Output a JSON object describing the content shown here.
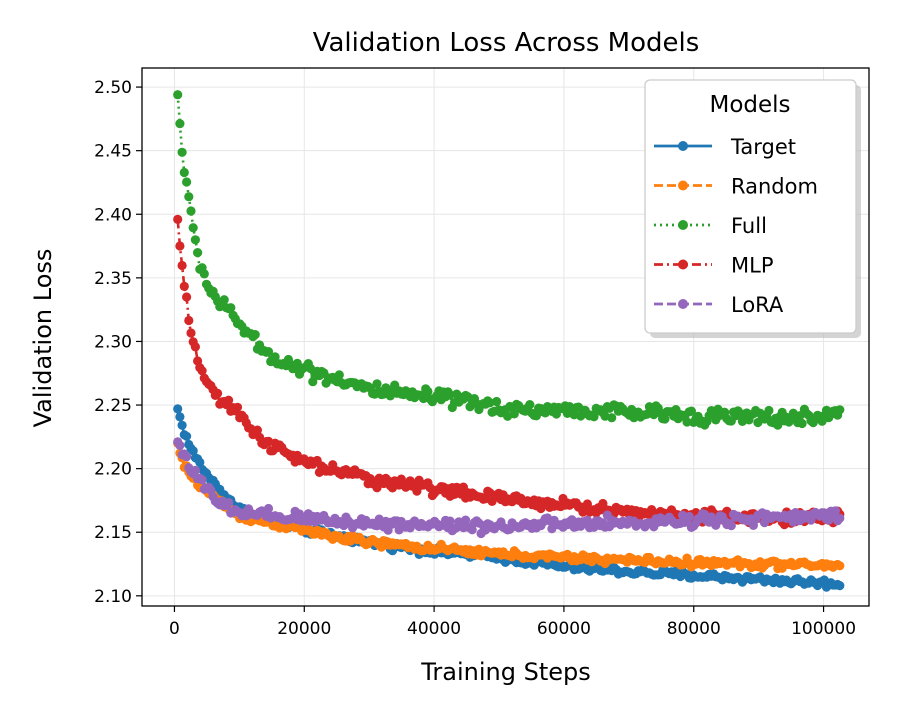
{
  "chart_data": {
    "type": "line",
    "title": "Validation Loss Across Models",
    "xlabel": "Training Steps",
    "ylabel": "Validation Loss",
    "xlim": [
      -5000,
      107000
    ],
    "ylim": [
      2.092,
      2.515
    ],
    "xticks": [
      0,
      20000,
      40000,
      60000,
      80000,
      100000
    ],
    "xtick_labels": [
      "0",
      "20000",
      "40000",
      "60000",
      "80000",
      "100000"
    ],
    "yticks": [
      2.1,
      2.15,
      2.2,
      2.25,
      2.3,
      2.35,
      2.4,
      2.45,
      2.5
    ],
    "ytick_labels": [
      "2.10",
      "2.15",
      "2.20",
      "2.25",
      "2.30",
      "2.35",
      "2.40",
      "2.45",
      "2.50"
    ],
    "grid": true,
    "legend": {
      "title": "Models",
      "position": "top-right"
    },
    "x_range": [
      500,
      102500
    ],
    "points_per_series": 300,
    "series": [
      {
        "name": "Target",
        "color": "#1f77b4",
        "dash": "solid",
        "anchors": [
          [
            500,
            2.247
          ],
          [
            1000,
            2.237
          ],
          [
            2000,
            2.222
          ],
          [
            3000,
            2.211
          ],
          [
            5000,
            2.195
          ],
          [
            7000,
            2.183
          ],
          [
            10000,
            2.168
          ],
          [
            15000,
            2.158
          ],
          [
            20000,
            2.152
          ],
          [
            25000,
            2.147
          ],
          [
            30000,
            2.142
          ],
          [
            40000,
            2.135
          ],
          [
            50000,
            2.13
          ],
          [
            60000,
            2.123
          ],
          [
            70000,
            2.119
          ],
          [
            80000,
            2.116
          ],
          [
            90000,
            2.113
          ],
          [
            100000,
            2.11
          ],
          [
            102500,
            2.109
          ]
        ],
        "noise": 0.003
      },
      {
        "name": "Random",
        "color": "#ff7f0e",
        "dash": "dashed",
        "anchors": [
          [
            500,
            2.22
          ],
          [
            1000,
            2.208
          ],
          [
            2000,
            2.198
          ],
          [
            3000,
            2.192
          ],
          [
            5000,
            2.182
          ],
          [
            7000,
            2.174
          ],
          [
            10000,
            2.163
          ],
          [
            15000,
            2.157
          ],
          [
            20000,
            2.152
          ],
          [
            25000,
            2.146
          ],
          [
            30000,
            2.142
          ],
          [
            40000,
            2.137
          ],
          [
            50000,
            2.133
          ],
          [
            60000,
            2.13
          ],
          [
            70000,
            2.128
          ],
          [
            80000,
            2.126
          ],
          [
            90000,
            2.125
          ],
          [
            100000,
            2.124
          ],
          [
            102500,
            2.124
          ]
        ],
        "noise": 0.003
      },
      {
        "name": "Full",
        "color": "#2ca02c",
        "dash": "dotted",
        "anchors": [
          [
            500,
            2.494
          ],
          [
            1000,
            2.46
          ],
          [
            1500,
            2.436
          ],
          [
            2500,
            2.4
          ],
          [
            3500,
            2.37
          ],
          [
            5000,
            2.345
          ],
          [
            7000,
            2.33
          ],
          [
            10000,
            2.315
          ],
          [
            13000,
            2.295
          ],
          [
            17000,
            2.283
          ],
          [
            22000,
            2.275
          ],
          [
            27000,
            2.268
          ],
          [
            30000,
            2.262
          ],
          [
            35000,
            2.258
          ],
          [
            40000,
            2.256
          ],
          [
            45000,
            2.252
          ],
          [
            50000,
            2.248
          ],
          [
            55000,
            2.246
          ],
          [
            60000,
            2.246
          ],
          [
            65000,
            2.245
          ],
          [
            70000,
            2.244
          ],
          [
            80000,
            2.242
          ],
          [
            90000,
            2.24
          ],
          [
            100000,
            2.24
          ],
          [
            102500,
            2.246
          ]
        ],
        "noise": 0.006
      },
      {
        "name": "MLP",
        "color": "#d62728",
        "dash": "dashdot",
        "anchors": [
          [
            500,
            2.396
          ],
          [
            1000,
            2.365
          ],
          [
            1500,
            2.345
          ],
          [
            2500,
            2.305
          ],
          [
            3500,
            2.285
          ],
          [
            5000,
            2.27
          ],
          [
            7000,
            2.252
          ],
          [
            10000,
            2.243
          ],
          [
            13000,
            2.225
          ],
          [
            17000,
            2.212
          ],
          [
            20000,
            2.205
          ],
          [
            25000,
            2.198
          ],
          [
            30000,
            2.192
          ],
          [
            35000,
            2.188
          ],
          [
            40000,
            2.185
          ],
          [
            45000,
            2.18
          ],
          [
            50000,
            2.176
          ],
          [
            55000,
            2.174
          ],
          [
            60000,
            2.172
          ],
          [
            65000,
            2.168
          ],
          [
            70000,
            2.166
          ],
          [
            80000,
            2.163
          ],
          [
            90000,
            2.161
          ],
          [
            100000,
            2.161
          ],
          [
            102500,
            2.163
          ]
        ],
        "noise": 0.005
      },
      {
        "name": "LoRA",
        "color": "#9467bd",
        "dash": "dashed",
        "anchors": [
          [
            500,
            2.221
          ],
          [
            1000,
            2.217
          ],
          [
            2000,
            2.206
          ],
          [
            3000,
            2.196
          ],
          [
            5000,
            2.183
          ],
          [
            7000,
            2.172
          ],
          [
            10000,
            2.165
          ],
          [
            15000,
            2.162
          ],
          [
            20000,
            2.161
          ],
          [
            25000,
            2.159
          ],
          [
            30000,
            2.157
          ],
          [
            40000,
            2.156
          ],
          [
            50000,
            2.155
          ],
          [
            60000,
            2.156
          ],
          [
            70000,
            2.157
          ],
          [
            80000,
            2.16
          ],
          [
            90000,
            2.161
          ],
          [
            100000,
            2.162
          ],
          [
            102500,
            2.164
          ]
        ],
        "noise": 0.005
      }
    ]
  }
}
